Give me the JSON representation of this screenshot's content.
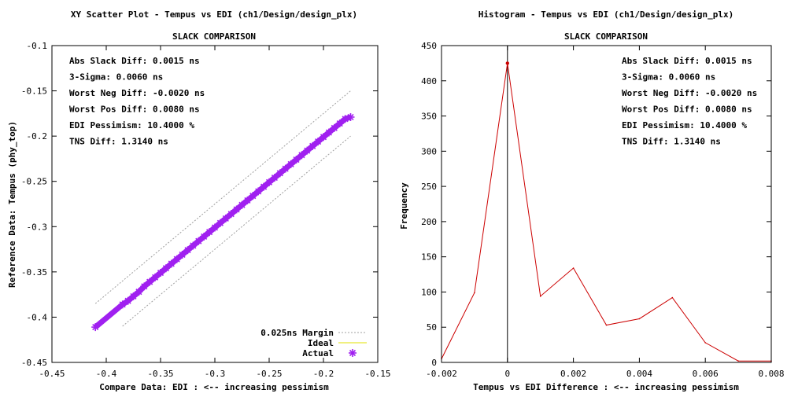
{
  "chart_data": [
    {
      "type": "scatter",
      "title": "XY Scatter Plot - Tempus vs EDI (ch1/Design/design_plx)",
      "subtitle": "SLACK COMPARISON",
      "xlabel": "Compare Data: EDI : <-- increasing pessimism",
      "ylabel": "Reference Data: Tempus (phy_top)",
      "xlim": [
        -0.45,
        -0.15
      ],
      "ylim": [
        -0.45,
        -0.1
      ],
      "xticks": [
        -0.45,
        -0.4,
        -0.35,
        -0.3,
        -0.25,
        -0.2,
        -0.15
      ],
      "xtick_labels": [
        "-0.45",
        "-0.4",
        "-0.35",
        "-0.3",
        "-0.25",
        "-0.2",
        "-0.15"
      ],
      "yticks": [
        -0.45,
        -0.4,
        -0.35,
        -0.3,
        -0.25,
        -0.2,
        -0.15,
        -0.1
      ],
      "ytick_labels": [
        "-0.45",
        "-0.4",
        "-0.35",
        "-0.3",
        "-0.25",
        "-0.2",
        "-0.15",
        "-0.1"
      ],
      "stats": [
        "Abs Slack Diff: 0.0015 ns",
        "3-Sigma: 0.0060 ns",
        "Worst Neg Diff: -0.0020 ns",
        "Worst Pos Diff: 0.0080 ns",
        "EDI Pessimism: 10.4000 %",
        "TNS Diff: 1.3140 ns"
      ],
      "legend": [
        {
          "label": "0.025ns Margin",
          "color": "#a0a0a0",
          "style": "dotted"
        },
        {
          "label": "Ideal",
          "color": "#e0e000",
          "style": "line"
        },
        {
          "label": "Actual",
          "color": "#a020f0",
          "style": "marker"
        }
      ],
      "legend_position": "bottom-right",
      "series": [
        {
          "name": "Ideal",
          "x": [
            -0.41,
            -0.385
          ],
          "y": [
            -0.41,
            -0.385
          ]
        },
        {
          "name": "0.025ns Margin (upper)",
          "x": [
            -0.41,
            -0.175
          ],
          "y": [
            -0.385,
            -0.15
          ]
        },
        {
          "name": "0.025ns Margin (lower)",
          "x": [
            -0.385,
            -0.175
          ],
          "y": [
            -0.41,
            -0.2
          ]
        },
        {
          "name": "Actual",
          "x": [
            -0.41,
            -0.385,
            -0.38,
            -0.375,
            -0.37,
            -0.365,
            -0.36,
            -0.355,
            -0.35,
            -0.345,
            -0.34,
            -0.335,
            -0.33,
            -0.325,
            -0.32,
            -0.315,
            -0.31,
            -0.305,
            -0.3,
            -0.295,
            -0.29,
            -0.285,
            -0.28,
            -0.275,
            -0.27,
            -0.265,
            -0.26,
            -0.255,
            -0.25,
            -0.245,
            -0.24,
            -0.235,
            -0.23,
            -0.225,
            -0.22,
            -0.215,
            -0.21,
            -0.205,
            -0.2,
            -0.195,
            -0.19,
            -0.185,
            -0.18,
            -0.175
          ],
          "y": [
            -0.411,
            -0.386,
            -0.382,
            -0.377,
            -0.372,
            -0.366,
            -0.361,
            -0.356,
            -0.351,
            -0.346,
            -0.341,
            -0.336,
            -0.331,
            -0.326,
            -0.321,
            -0.316,
            -0.311,
            -0.306,
            -0.301,
            -0.296,
            -0.291,
            -0.286,
            -0.281,
            -0.276,
            -0.271,
            -0.266,
            -0.261,
            -0.256,
            -0.251,
            -0.246,
            -0.241,
            -0.236,
            -0.231,
            -0.226,
            -0.221,
            -0.216,
            -0.211,
            -0.206,
            -0.201,
            -0.196,
            -0.191,
            -0.186,
            -0.181,
            -0.179
          ]
        }
      ]
    },
    {
      "type": "line",
      "title": "Histogram - Tempus vs EDI (ch1/Design/design_plx)",
      "subtitle": "SLACK COMPARISON",
      "xlabel": "Tempus vs EDI Difference : <-- increasing pessimism",
      "ylabel": "Frequency",
      "xlim": [
        -0.002,
        0.008
      ],
      "ylim": [
        0,
        450
      ],
      "xticks": [
        -0.002,
        0,
        0.002,
        0.004,
        0.006,
        0.008
      ],
      "xtick_labels": [
        "-0.002",
        "0",
        "0.002",
        "0.004",
        "0.006",
        "0.008"
      ],
      "yticks": [
        0,
        50,
        100,
        150,
        200,
        250,
        300,
        350,
        400,
        450
      ],
      "ytick_labels": [
        "0",
        "50",
        "100",
        "150",
        "200",
        "250",
        "300",
        "350",
        "400",
        "450"
      ],
      "stats": [
        "Abs Slack Diff: 0.0015 ns",
        "3-Sigma: 0.0060 ns",
        "Worst Neg Diff: -0.0020 ns",
        "Worst Pos Diff: 0.0080 ns",
        "EDI Pessimism: 10.4000 %",
        "TNS Diff: 1.3140 ns"
      ],
      "vline_x": 0,
      "series": [
        {
          "name": "Frequency",
          "color": "#cc0000",
          "x": [
            -0.002,
            -0.001,
            0,
            0.001,
            0.002,
            0.003,
            0.004,
            0.005,
            0.006,
            0.007,
            0.008
          ],
          "y": [
            5,
            99,
            425,
            94,
            134,
            53,
            62,
            92,
            28,
            2,
            2
          ]
        }
      ]
    }
  ]
}
